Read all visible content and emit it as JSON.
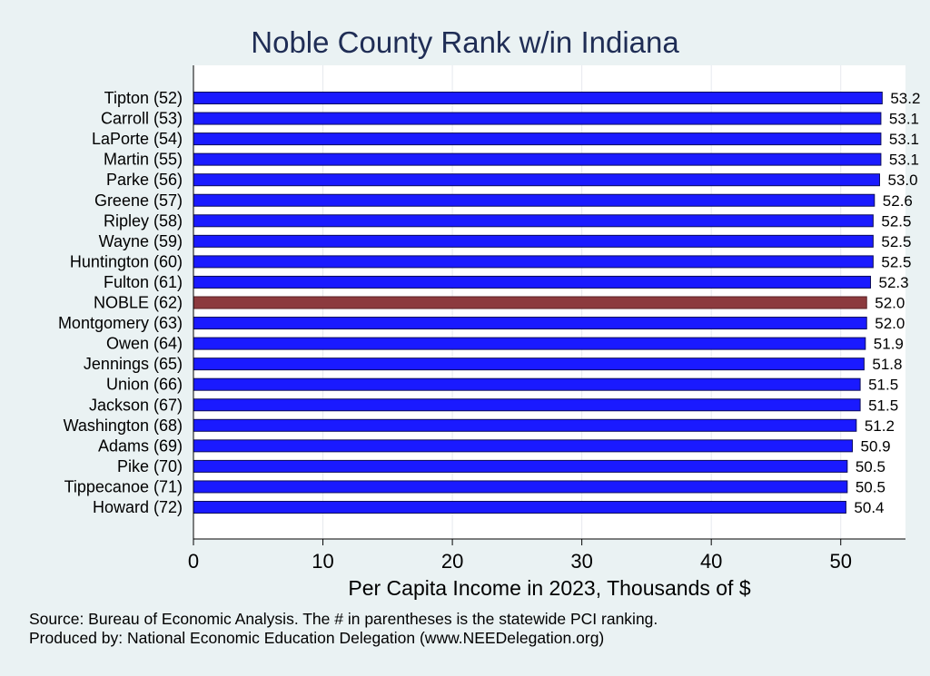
{
  "chart_data": {
    "type": "bar",
    "orientation": "horizontal",
    "title": "Noble County Rank w/in Indiana",
    "xlabel": "Per Capita Income in 2023, Thousands of $",
    "xlim": [
      0,
      55
    ],
    "xticks": [
      "0",
      "10",
      "20",
      "30",
      "40",
      "50"
    ],
    "grid": true,
    "categories": [
      "Tipton (52)",
      "Carroll (53)",
      "LaPorte (54)",
      "Martin (55)",
      "Parke (56)",
      "Greene (57)",
      "Ripley (58)",
      "Wayne (59)",
      "Huntington (60)",
      "Fulton (61)",
      "NOBLE (62)",
      "Montgomery (63)",
      "Owen (64)",
      "Jennings (65)",
      "Union (66)",
      "Jackson (67)",
      "Washington (68)",
      "Adams (69)",
      "Pike (70)",
      "Tippecanoe (71)",
      "Howard (72)"
    ],
    "values": [
      53.2,
      53.1,
      53.1,
      53.1,
      53.0,
      52.6,
      52.5,
      52.5,
      52.5,
      52.3,
      52.0,
      52.0,
      51.9,
      51.8,
      51.5,
      51.5,
      51.2,
      50.9,
      50.5,
      50.5,
      50.4
    ],
    "value_labels": [
      "53.2",
      "53.1",
      "53.1",
      "53.1",
      "53.0",
      "52.6",
      "52.5",
      "52.5",
      "52.5",
      "52.3",
      "52.0",
      "52.0",
      "51.9",
      "51.8",
      "51.5",
      "51.5",
      "51.2",
      "50.9",
      "50.5",
      "50.5",
      "50.4"
    ],
    "highlight": "NOBLE (62)",
    "colors": {
      "bar": "#1a1aff",
      "highlight": "#8c3a3e",
      "bar_edge": "#0d0d5a",
      "plot_bg": "#ffffff",
      "page_bg": "#eaf2f3",
      "title": "#1f2d55"
    }
  },
  "footer": {
    "source": "Source: Bureau of Economic Analysis. The # in parentheses is the statewide PCI ranking.",
    "producer": "Produced by: National Economic Education Delegation (www.NEEDelegation.org)"
  }
}
